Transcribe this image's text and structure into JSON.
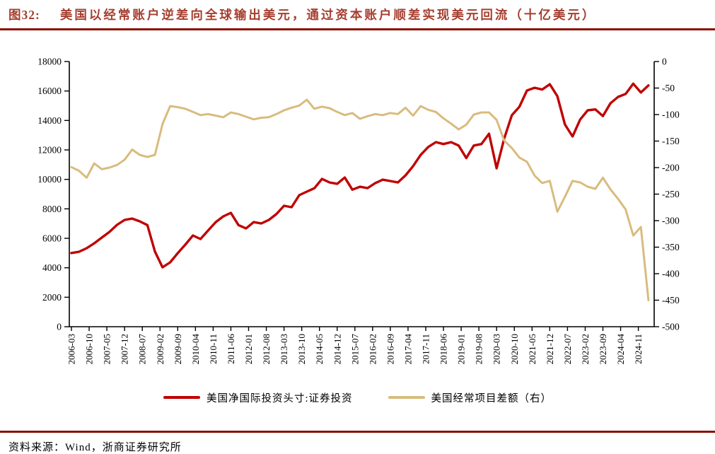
{
  "header": {
    "tag": "图32:",
    "title": "美国以经常账户逆差向全球输出美元，通过资本账户顺差实现美元回流（十亿美元）"
  },
  "footer": {
    "source": "资料来源：Wind，浙商证券研究所"
  },
  "colors": {
    "title_red": "#A63E2F",
    "rule_red": "#8B0E04",
    "line_red": "#C00000",
    "line_tan": "#D8BC7E",
    "axis_black": "#000000"
  },
  "chart_data": {
    "type": "line",
    "title": "美国以经常账户逆差向全球输出美元，通过资本账户顺差实现美元回流（十亿美元）",
    "grid": false,
    "legend_position": "bottom",
    "x_tick_labels": [
      "2006-03",
      "2006-10",
      "2007-05",
      "2007-12",
      "2008-07",
      "2009-02",
      "2009-09",
      "2010-04",
      "2010-11",
      "2011-06",
      "2012-01",
      "2012-08",
      "2013-03",
      "2013-10",
      "2014-05",
      "2014-12",
      "2015-07",
      "2016-02",
      "2016-09",
      "2017-04",
      "2017-11",
      "2018-06",
      "2019-01",
      "2019-08",
      "2020-03",
      "2020-10",
      "2021-05",
      "2021-12",
      "2022-07",
      "2023-02",
      "2023-09",
      "2024-04",
      "2024-11"
    ],
    "y_left": {
      "min": 0,
      "max": 18000,
      "step": 2000
    },
    "y_right": {
      "min": -500,
      "max": 0,
      "step": 50
    },
    "y_left_ticks": [
      "18000",
      "16000",
      "14000",
      "12000",
      "10000",
      "8000",
      "6000",
      "4000",
      "2000",
      "0"
    ],
    "y_right_ticks": [
      "0",
      "-50",
      "-100",
      "-150",
      "-200",
      "-250",
      "-300",
      "-350",
      "-400",
      "-450",
      "-500"
    ],
    "series": [
      {
        "name": "美国净国际投资头寸:证券投资",
        "axis": "left",
        "color": "#C00000",
        "values": [
          5000,
          5090,
          5330,
          5660,
          6050,
          6430,
          6910,
          7250,
          7340,
          7150,
          6900,
          5100,
          4030,
          4370,
          4990,
          5570,
          6190,
          5950,
          6530,
          7100,
          7490,
          7730,
          6900,
          6670,
          7100,
          7010,
          7250,
          7650,
          8210,
          8110,
          8930,
          9170,
          9400,
          10030,
          9790,
          9700,
          10130,
          9300,
          9500,
          9410,
          9740,
          9980,
          9890,
          9790,
          10270,
          10900,
          11660,
          12200,
          12530,
          12400,
          12530,
          12300,
          11450,
          12300,
          12400,
          13100,
          10750,
          12770,
          14350,
          14930,
          16030,
          16220,
          16100,
          16460,
          15650,
          13730,
          12910,
          14060,
          14690,
          14750,
          14300,
          15170,
          15600,
          15800,
          16500,
          15900,
          16380
        ]
      },
      {
        "name": "美国经常项目差额（右）",
        "axis": "right",
        "color": "#D8BC7E",
        "values": [
          -199,
          -206,
          -219,
          -192,
          -203,
          -200,
          -195,
          -185,
          -166,
          -176,
          -180,
          -176,
          -118,
          -84,
          -86,
          -89,
          -95,
          -101,
          -99,
          -102,
          -105,
          -96,
          -99,
          -104,
          -109,
          -106,
          -105,
          -99,
          -92,
          -87,
          -83,
          -72,
          -89,
          -85,
          -88,
          -95,
          -101,
          -97,
          -108,
          -103,
          -99,
          -101,
          -97,
          -99,
          -87,
          -102,
          -84,
          -91,
          -95,
          -107,
          -117,
          -128,
          -119,
          -100,
          -96,
          -96,
          -110,
          -149,
          -163,
          -181,
          -189,
          -215,
          -229,
          -225,
          -283,
          -255,
          -225,
          -228,
          -236,
          -240,
          -219,
          -241,
          -259,
          -279,
          -328,
          -312,
          -450
        ]
      }
    ]
  }
}
